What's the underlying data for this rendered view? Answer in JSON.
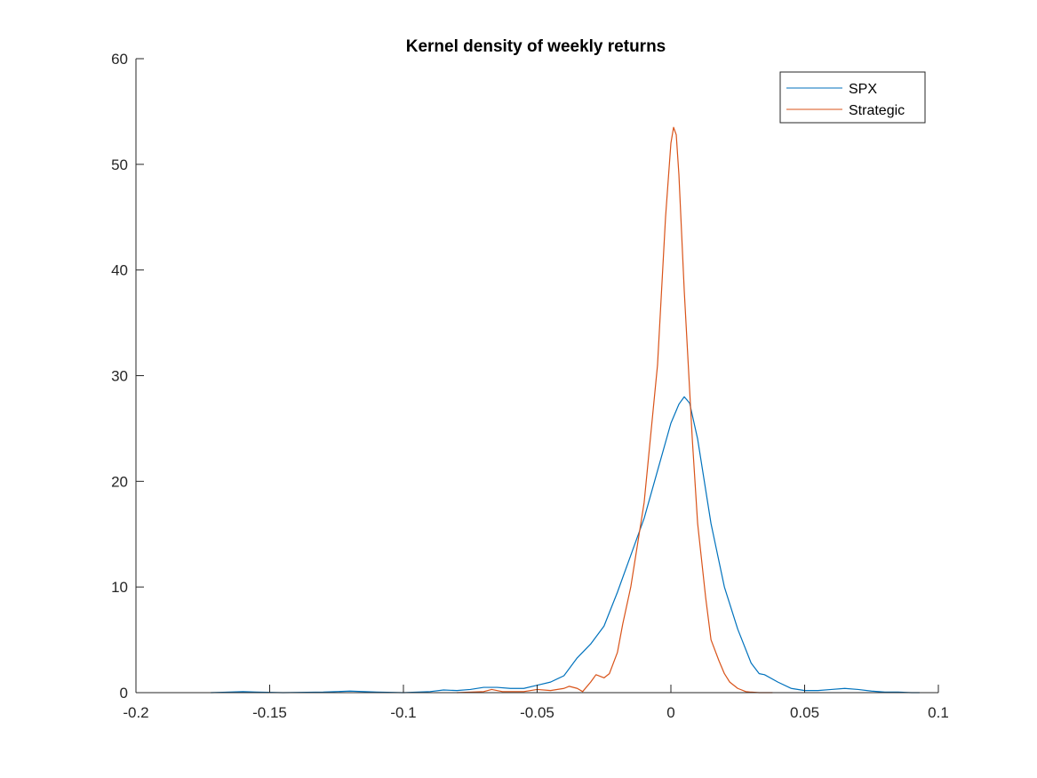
{
  "chart_data": {
    "type": "line",
    "title": "Kernel density of weekly returns",
    "xlabel": "",
    "ylabel": "",
    "xlim": [
      -0.2,
      0.1
    ],
    "ylim": [
      0,
      60
    ],
    "x_ticks": [
      -0.2,
      -0.15,
      -0.1,
      -0.05,
      0,
      0.05,
      0.1
    ],
    "x_tick_labels": [
      "-0.2",
      "-0.15",
      "-0.1",
      "-0.05",
      "0",
      "0.05",
      "0.1"
    ],
    "y_ticks": [
      0,
      10,
      20,
      30,
      40,
      50,
      60
    ],
    "y_tick_labels": [
      "0",
      "10",
      "20",
      "30",
      "40",
      "50",
      "60"
    ],
    "grid": false,
    "legend_position": "top-right",
    "series": [
      {
        "name": "SPX",
        "color": "#0072BD",
        "x": [
          -0.172,
          -0.165,
          -0.16,
          -0.155,
          -0.145,
          -0.13,
          -0.12,
          -0.11,
          -0.1,
          -0.09,
          -0.085,
          -0.08,
          -0.075,
          -0.07,
          -0.065,
          -0.06,
          -0.055,
          -0.05,
          -0.045,
          -0.04,
          -0.035,
          -0.03,
          -0.025,
          -0.02,
          -0.015,
          -0.01,
          -0.005,
          0,
          0.003,
          0.005,
          0.007,
          0.01,
          0.015,
          0.02,
          0.025,
          0.03,
          0.033,
          0.035,
          0.04,
          0.045,
          0.05,
          0.055,
          0.06,
          0.065,
          0.07,
          0.075,
          0.08,
          0.085,
          0.09,
          0.093
        ],
        "values": [
          0,
          0.05,
          0.1,
          0.05,
          0,
          0.05,
          0.15,
          0.05,
          0,
          0.1,
          0.25,
          0.2,
          0.3,
          0.5,
          0.5,
          0.4,
          0.4,
          0.7,
          1.0,
          1.6,
          3.3,
          4.6,
          6.3,
          9.5,
          13,
          16.5,
          21,
          25.5,
          27.3,
          28,
          27.4,
          24,
          16,
          10,
          6,
          2.8,
          1.8,
          1.7,
          1.0,
          0.4,
          0.2,
          0.2,
          0.3,
          0.4,
          0.3,
          0.15,
          0.05,
          0.05,
          0,
          0
        ]
      },
      {
        "name": "Strategic",
        "color": "#D95319",
        "x": [
          -0.08,
          -0.07,
          -0.067,
          -0.063,
          -0.055,
          -0.05,
          -0.045,
          -0.04,
          -0.038,
          -0.035,
          -0.033,
          -0.03,
          -0.028,
          -0.025,
          -0.023,
          -0.02,
          -0.018,
          -0.015,
          -0.01,
          -0.005,
          -0.002,
          0,
          0.001,
          0.002,
          0.003,
          0.005,
          0.008,
          0.01,
          0.013,
          0.015,
          0.018,
          0.02,
          0.022,
          0.025,
          0.028,
          0.03,
          0.033,
          0.035,
          0.038
        ],
        "values": [
          0,
          0.1,
          0.3,
          0.1,
          0.1,
          0.3,
          0.2,
          0.4,
          0.6,
          0.4,
          0.1,
          1.0,
          1.7,
          1.4,
          1.8,
          3.8,
          6.5,
          10,
          18,
          31,
          45,
          52,
          53.5,
          52.8,
          49,
          38,
          24,
          16,
          9,
          5,
          3,
          1.8,
          1.0,
          0.4,
          0.1,
          0.05,
          0,
          0,
          0
        ]
      }
    ]
  }
}
